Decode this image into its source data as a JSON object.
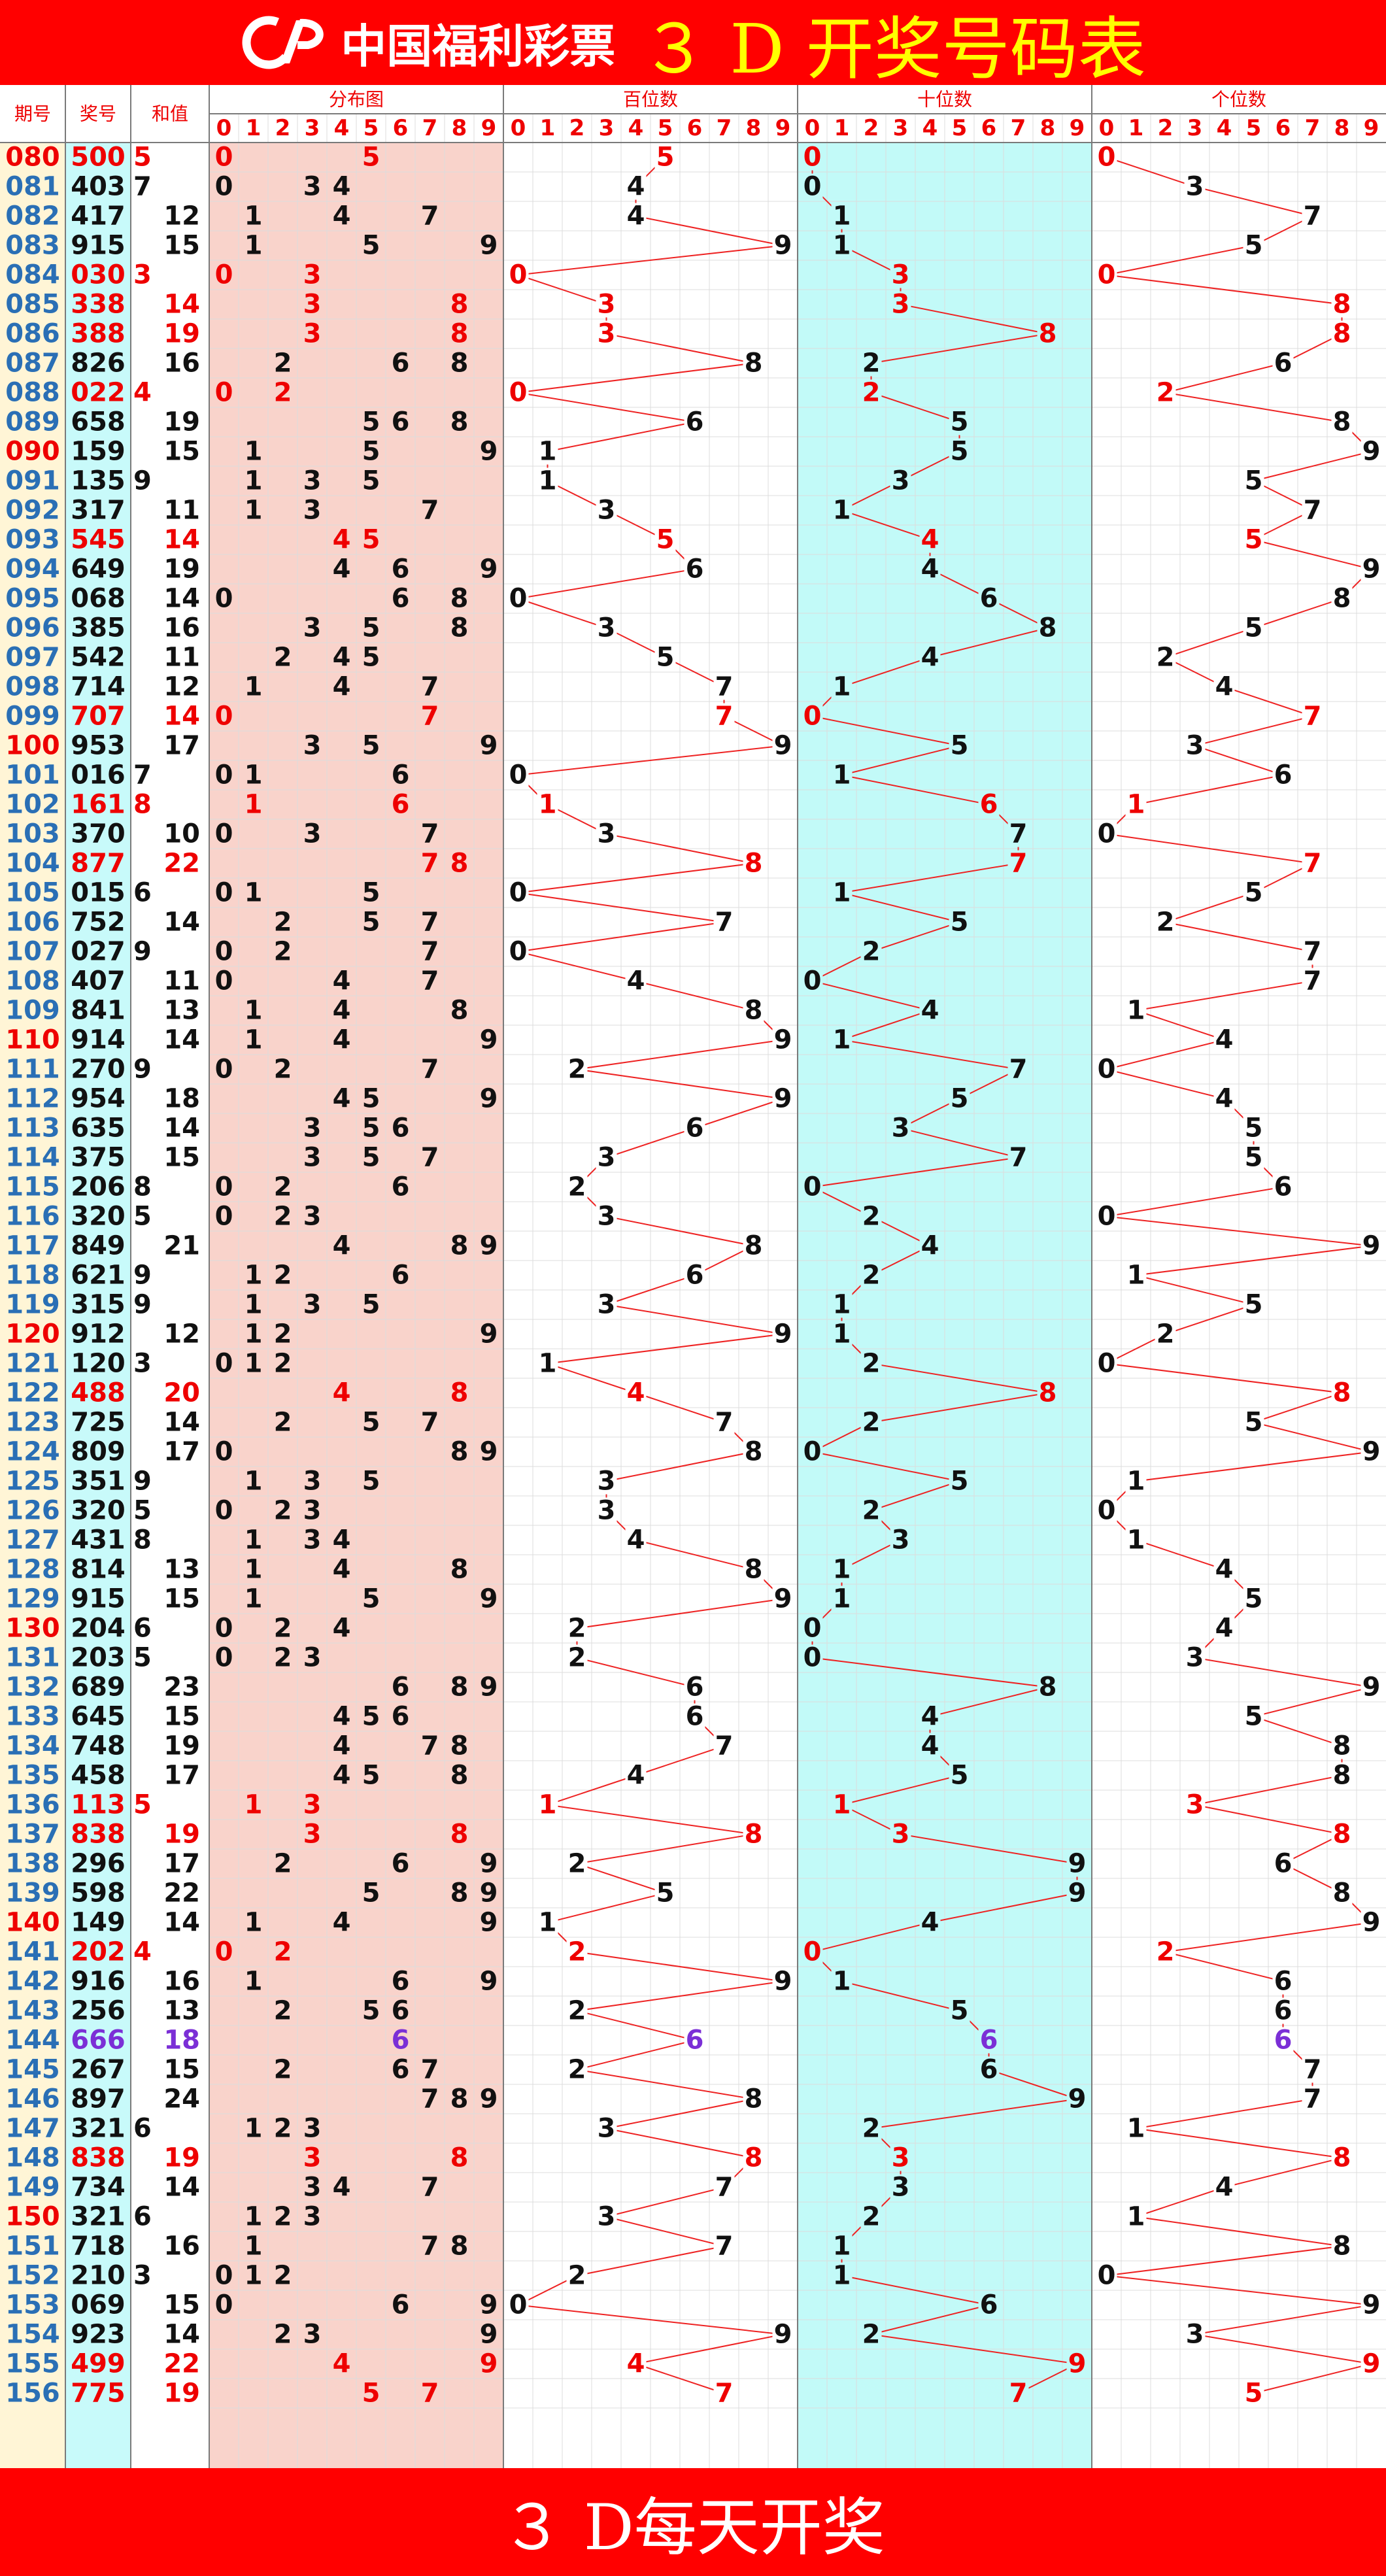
{
  "header": {
    "brand": "中国福利彩票",
    "title": "３ D 开奖号码表",
    "logo_icon": "welfare-lottery-logo-icon"
  },
  "footer": {
    "text": "３ D每天开奖"
  },
  "colors": {
    "background": "#ff0000",
    "title": "#ffff00",
    "issue_bg": "#fff5d6",
    "number_bg": "#c8fafa",
    "distribution_bg": "#f9d3cb",
    "tens_bg": "#c2faf8",
    "red": "#ee0000",
    "purple": "#7b2fd6",
    "black": "#111111",
    "blue": "#2a6fb5",
    "line": "#ee2222"
  },
  "chart_data": {
    "type": "table",
    "columns": {
      "issue": "期号",
      "number": "奖号",
      "sum": "和值",
      "distribution": "分布图",
      "hundreds": "百位数",
      "tens": "十位数",
      "units": "个位数"
    },
    "digits": [
      "0",
      "1",
      "2",
      "3",
      "4",
      "5",
      "6",
      "7",
      "8",
      "9"
    ],
    "rows": [
      {
        "issue": "080",
        "number": "500",
        "sum": "5"
      },
      {
        "issue": "081",
        "number": "403",
        "sum": "7"
      },
      {
        "issue": "082",
        "number": "417",
        "sum": "12"
      },
      {
        "issue": "083",
        "number": "915",
        "sum": "15"
      },
      {
        "issue": "084",
        "number": "030",
        "sum": "3"
      },
      {
        "issue": "085",
        "number": "338",
        "sum": "14"
      },
      {
        "issue": "086",
        "number": "388",
        "sum": "19"
      },
      {
        "issue": "087",
        "number": "826",
        "sum": "16"
      },
      {
        "issue": "088",
        "number": "022",
        "sum": "4"
      },
      {
        "issue": "089",
        "number": "658",
        "sum": "19"
      },
      {
        "issue": "090",
        "number": "159",
        "sum": "15"
      },
      {
        "issue": "091",
        "number": "135",
        "sum": "9"
      },
      {
        "issue": "092",
        "number": "317",
        "sum": "11"
      },
      {
        "issue": "093",
        "number": "545",
        "sum": "14"
      },
      {
        "issue": "094",
        "number": "649",
        "sum": "19"
      },
      {
        "issue": "095",
        "number": "068",
        "sum": "14"
      },
      {
        "issue": "096",
        "number": "385",
        "sum": "16"
      },
      {
        "issue": "097",
        "number": "542",
        "sum": "11"
      },
      {
        "issue": "098",
        "number": "714",
        "sum": "12"
      },
      {
        "issue": "099",
        "number": "707",
        "sum": "14"
      },
      {
        "issue": "100",
        "number": "953",
        "sum": "17"
      },
      {
        "issue": "101",
        "number": "016",
        "sum": "7"
      },
      {
        "issue": "102",
        "number": "161",
        "sum": "8"
      },
      {
        "issue": "103",
        "number": "370",
        "sum": "10"
      },
      {
        "issue": "104",
        "number": "877",
        "sum": "22"
      },
      {
        "issue": "105",
        "number": "015",
        "sum": "6"
      },
      {
        "issue": "106",
        "number": "752",
        "sum": "14"
      },
      {
        "issue": "107",
        "number": "027",
        "sum": "9"
      },
      {
        "issue": "108",
        "number": "407",
        "sum": "11"
      },
      {
        "issue": "109",
        "number": "841",
        "sum": "13"
      },
      {
        "issue": "110",
        "number": "914",
        "sum": "14"
      },
      {
        "issue": "111",
        "number": "270",
        "sum": "9"
      },
      {
        "issue": "112",
        "number": "954",
        "sum": "18"
      },
      {
        "issue": "113",
        "number": "635",
        "sum": "14"
      },
      {
        "issue": "114",
        "number": "375",
        "sum": "15"
      },
      {
        "issue": "115",
        "number": "206",
        "sum": "8"
      },
      {
        "issue": "116",
        "number": "320",
        "sum": "5"
      },
      {
        "issue": "117",
        "number": "849",
        "sum": "21"
      },
      {
        "issue": "118",
        "number": "621",
        "sum": "9"
      },
      {
        "issue": "119",
        "number": "315",
        "sum": "9"
      },
      {
        "issue": "120",
        "number": "912",
        "sum": "12"
      },
      {
        "issue": "121",
        "number": "120",
        "sum": "3"
      },
      {
        "issue": "122",
        "number": "488",
        "sum": "20"
      },
      {
        "issue": "123",
        "number": "725",
        "sum": "14"
      },
      {
        "issue": "124",
        "number": "809",
        "sum": "17"
      },
      {
        "issue": "125",
        "number": "351",
        "sum": "9"
      },
      {
        "issue": "126",
        "number": "320",
        "sum": "5"
      },
      {
        "issue": "127",
        "number": "431",
        "sum": "8"
      },
      {
        "issue": "128",
        "number": "814",
        "sum": "13"
      },
      {
        "issue": "129",
        "number": "915",
        "sum": "15"
      },
      {
        "issue": "130",
        "number": "204",
        "sum": "6"
      },
      {
        "issue": "131",
        "number": "203",
        "sum": "5"
      },
      {
        "issue": "132",
        "number": "689",
        "sum": "23"
      },
      {
        "issue": "133",
        "number": "645",
        "sum": "15"
      },
      {
        "issue": "134",
        "number": "748",
        "sum": "19"
      },
      {
        "issue": "135",
        "number": "458",
        "sum": "17"
      },
      {
        "issue": "136",
        "number": "113",
        "sum": "5"
      },
      {
        "issue": "137",
        "number": "838",
        "sum": "19"
      },
      {
        "issue": "138",
        "number": "296",
        "sum": "17"
      },
      {
        "issue": "139",
        "number": "598",
        "sum": "22"
      },
      {
        "issue": "140",
        "number": "149",
        "sum": "14"
      },
      {
        "issue": "141",
        "number": "202",
        "sum": "4"
      },
      {
        "issue": "142",
        "number": "916",
        "sum": "16"
      },
      {
        "issue": "143",
        "number": "256",
        "sum": "13"
      },
      {
        "issue": "144",
        "number": "666",
        "sum": "18"
      },
      {
        "issue": "145",
        "number": "267",
        "sum": "15"
      },
      {
        "issue": "146",
        "number": "897",
        "sum": "24"
      },
      {
        "issue": "147",
        "number": "321",
        "sum": "6"
      },
      {
        "issue": "148",
        "number": "838",
        "sum": "19"
      },
      {
        "issue": "149",
        "number": "734",
        "sum": "14"
      },
      {
        "issue": "150",
        "number": "321",
        "sum": "6"
      },
      {
        "issue": "151",
        "number": "718",
        "sum": "16"
      },
      {
        "issue": "152",
        "number": "210",
        "sum": "3"
      },
      {
        "issue": "153",
        "number": "069",
        "sum": "15"
      },
      {
        "issue": "154",
        "number": "923",
        "sum": "14"
      },
      {
        "issue": "155",
        "number": "499",
        "sum": "22"
      },
      {
        "issue": "156",
        "number": "775",
        "sum": "19"
      }
    ]
  }
}
